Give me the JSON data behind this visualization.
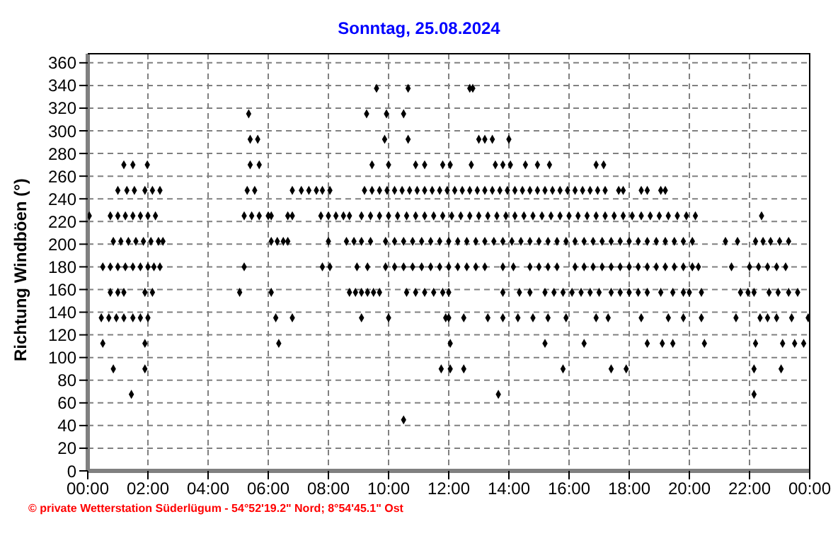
{
  "chart_data": {
    "type": "scatter",
    "title": "Sonntag, 25.08.2024",
    "ylabel": "Richtung Windböen  (°)",
    "annotations": [
      "© private Wetterstation Süderlügum - 54°52'19.2\" Nord; 8°54'45.1\" Ost"
    ],
    "xlim": [
      0,
      24
    ],
    "ylim": [
      0,
      368
    ],
    "xticks": [
      {
        "value": 0,
        "label": "00:00"
      },
      {
        "value": 2,
        "label": "02:00"
      },
      {
        "value": 4,
        "label": "04:00"
      },
      {
        "value": 6,
        "label": "06:00"
      },
      {
        "value": 8,
        "label": "08:00"
      },
      {
        "value": 10,
        "label": "10:00"
      },
      {
        "value": 12,
        "label": "12:00"
      },
      {
        "value": 14,
        "label": "14:00"
      },
      {
        "value": 16,
        "label": "16:00"
      },
      {
        "value": 18,
        "label": "18:00"
      },
      {
        "value": 20,
        "label": "20:00"
      },
      {
        "value": 22,
        "label": "22:00"
      },
      {
        "value": 24,
        "label": "00:00"
      }
    ],
    "yticks": [
      0,
      20,
      40,
      60,
      80,
      100,
      120,
      140,
      160,
      180,
      200,
      220,
      240,
      260,
      280,
      300,
      320,
      340,
      360
    ],
    "grid": true,
    "marker": "diamond",
    "series": [
      {
        "color": "#000000",
        "x": [
          9.6,
          10.65,
          12.7,
          12.8,
          5.35,
          9.27,
          9.93,
          10.5,
          5.4,
          5.65,
          9.87,
          10.65,
          13.0,
          13.2,
          13.45,
          14.0,
          1.2,
          1.5,
          1.98,
          5.4,
          5.7,
          9.45,
          10.0,
          10.9,
          11.2,
          11.8,
          12.05,
          12.75,
          13.55,
          13.8,
          14.05,
          14.55,
          14.95,
          15.35,
          16.9,
          17.15,
          1.0,
          1.3,
          1.55,
          1.9,
          2.15,
          2.4,
          5.3,
          5.55,
          6.8,
          7.1,
          7.35,
          7.6,
          7.8,
          8.05,
          9.2,
          9.45,
          9.7,
          9.95,
          10.2,
          10.45,
          10.7,
          10.95,
          11.2,
          11.45,
          11.7,
          11.95,
          12.2,
          12.45,
          12.7,
          12.95,
          13.2,
          13.45,
          13.7,
          13.95,
          14.2,
          14.45,
          14.7,
          14.95,
          15.2,
          15.45,
          15.7,
          15.95,
          16.2,
          16.45,
          16.7,
          16.95,
          17.2,
          17.65,
          17.8,
          18.4,
          18.6,
          19.05,
          19.2,
          0.05,
          0.75,
          1.0,
          1.25,
          1.5,
          1.75,
          2.0,
          2.25,
          5.2,
          5.45,
          5.7,
          6.0,
          6.1,
          6.65,
          6.8,
          7.75,
          8.0,
          8.25,
          8.5,
          8.7,
          9.1,
          9.4,
          9.7,
          10.0,
          10.3,
          10.6,
          10.9,
          11.2,
          11.5,
          11.8,
          12.1,
          12.4,
          12.7,
          13.0,
          13.3,
          13.6,
          13.9,
          14.2,
          14.5,
          14.8,
          15.1,
          15.4,
          15.7,
          16.0,
          16.3,
          16.6,
          16.9,
          17.2,
          17.5,
          17.8,
          18.1,
          18.4,
          18.7,
          19.0,
          19.3,
          19.6,
          19.9,
          20.2,
          22.4,
          0.85,
          1.1,
          1.35,
          1.6,
          1.85,
          2.1,
          2.35,
          2.5,
          6.1,
          6.3,
          6.5,
          6.65,
          8.0,
          8.6,
          8.85,
          9.1,
          9.4,
          9.9,
          10.2,
          10.5,
          10.8,
          11.1,
          11.4,
          11.7,
          12.0,
          12.3,
          12.6,
          12.9,
          13.2,
          13.5,
          13.8,
          14.1,
          14.4,
          14.7,
          15.0,
          15.3,
          15.6,
          15.9,
          16.2,
          16.5,
          16.8,
          17.1,
          17.4,
          17.7,
          18.0,
          18.3,
          18.6,
          18.9,
          19.2,
          19.5,
          19.8,
          20.1,
          21.2,
          21.6,
          22.2,
          22.45,
          22.7,
          23.0,
          23.3,
          0.5,
          0.75,
          1.0,
          1.25,
          1.5,
          1.75,
          2.0,
          2.2,
          2.4,
          5.2,
          7.8,
          8.05,
          8.95,
          9.3,
          9.9,
          10.2,
          10.5,
          10.8,
          11.1,
          11.4,
          11.7,
          12.0,
          12.3,
          12.6,
          12.9,
          13.2,
          13.8,
          14.15,
          14.7,
          15.0,
          15.3,
          15.6,
          16.2,
          16.5,
          16.8,
          17.1,
          17.4,
          17.7,
          18.0,
          18.3,
          18.6,
          18.9,
          19.2,
          19.5,
          19.8,
          20.1,
          20.3,
          21.4,
          22.0,
          22.3,
          22.6,
          22.9,
          23.2,
          0.75,
          1.0,
          1.2,
          1.9,
          2.15,
          5.05,
          6.1,
          8.7,
          8.9,
          9.1,
          9.3,
          9.5,
          9.7,
          10.6,
          10.9,
          11.2,
          11.5,
          11.8,
          12.0,
          13.8,
          14.35,
          14.7,
          15.2,
          15.5,
          15.8,
          16.1,
          16.4,
          16.7,
          17.0,
          17.4,
          17.7,
          18.0,
          18.3,
          18.6,
          19.05,
          19.45,
          19.8,
          20.0,
          20.4,
          21.7,
          21.95,
          22.15,
          22.65,
          22.95,
          23.3,
          23.6,
          0.45,
          0.7,
          0.95,
          1.2,
          1.5,
          1.75,
          2.0,
          6.25,
          6.8,
          9.1,
          10.0,
          11.9,
          12.0,
          12.5,
          13.3,
          13.8,
          14.3,
          14.8,
          15.3,
          15.9,
          16.9,
          17.3,
          18.4,
          19.3,
          19.8,
          20.4,
          21.55,
          22.35,
          22.6,
          22.9,
          23.4,
          23.95,
          0.5,
          1.9,
          6.35,
          12.05,
          15.2,
          16.5,
          18.6,
          19.1,
          19.45,
          20.5,
          22.2,
          23.1,
          23.5,
          23.8,
          0.85,
          1.9,
          11.75,
          12.05,
          12.5,
          15.8,
          17.4,
          17.9,
          22.15,
          23.05,
          1.45,
          13.65,
          22.15,
          10.5
        ],
        "values": [
          337.5,
          337.5,
          337.5,
          337.5,
          315,
          315,
          315,
          315,
          292.5,
          292.5,
          292.5,
          292.5,
          292.5,
          292.5,
          292.5,
          292.5,
          270,
          270,
          270,
          270,
          270,
          270,
          270,
          270,
          270,
          270,
          270,
          270,
          270,
          270,
          270,
          270,
          270,
          270,
          270,
          270,
          247.5,
          247.5,
          247.5,
          247.5,
          247.5,
          247.5,
          247.5,
          247.5,
          247.5,
          247.5,
          247.5,
          247.5,
          247.5,
          247.5,
          247.5,
          247.5,
          247.5,
          247.5,
          247.5,
          247.5,
          247.5,
          247.5,
          247.5,
          247.5,
          247.5,
          247.5,
          247.5,
          247.5,
          247.5,
          247.5,
          247.5,
          247.5,
          247.5,
          247.5,
          247.5,
          247.5,
          247.5,
          247.5,
          247.5,
          247.5,
          247.5,
          247.5,
          247.5,
          247.5,
          247.5,
          247.5,
          247.5,
          247.5,
          247.5,
          247.5,
          247.5,
          247.5,
          247.5,
          225,
          225,
          225,
          225,
          225,
          225,
          225,
          225,
          225,
          225,
          225,
          225,
          225,
          225,
          225,
          225,
          225,
          225,
          225,
          225,
          225,
          225,
          225,
          225,
          225,
          225,
          225,
          225,
          225,
          225,
          225,
          225,
          225,
          225,
          225,
          225,
          225,
          225,
          225,
          225,
          225,
          225,
          225,
          225,
          225,
          225,
          225,
          225,
          225,
          225,
          225,
          225,
          225,
          225,
          225,
          225,
          225,
          225,
          225,
          202.5,
          202.5,
          202.5,
          202.5,
          202.5,
          202.5,
          202.5,
          202.5,
          202.5,
          202.5,
          202.5,
          202.5,
          202.5,
          202.5,
          202.5,
          202.5,
          202.5,
          202.5,
          202.5,
          202.5,
          202.5,
          202.5,
          202.5,
          202.5,
          202.5,
          202.5,
          202.5,
          202.5,
          202.5,
          202.5,
          202.5,
          202.5,
          202.5,
          202.5,
          202.5,
          202.5,
          202.5,
          202.5,
          202.5,
          202.5,
          202.5,
          202.5,
          202.5,
          202.5,
          202.5,
          202.5,
          202.5,
          202.5,
          202.5,
          202.5,
          202.5,
          202.5,
          202.5,
          202.5,
          202.5,
          202.5,
          202.5,
          202.5,
          202.5,
          180,
          180,
          180,
          180,
          180,
          180,
          180,
          180,
          180,
          180,
          180,
          180,
          180,
          180,
          180,
          180,
          180,
          180,
          180,
          180,
          180,
          180,
          180,
          180,
          180,
          180,
          180,
          180,
          180,
          180,
          180,
          180,
          180,
          180,
          180,
          180,
          180,
          180,
          180,
          180,
          180,
          180,
          180,
          180,
          180,
          180,
          180,
          180,
          180,
          180,
          180,
          180,
          180,
          157.5,
          157.5,
          157.5,
          157.5,
          157.5,
          157.5,
          157.5,
          157.5,
          157.5,
          157.5,
          157.5,
          157.5,
          157.5,
          157.5,
          157.5,
          157.5,
          157.5,
          157.5,
          157.5,
          157.5,
          157.5,
          157.5,
          157.5,
          157.5,
          157.5,
          157.5,
          157.5,
          157.5,
          157.5,
          157.5,
          157.5,
          157.5,
          157.5,
          157.5,
          157.5,
          157.5,
          157.5,
          157.5,
          157.5,
          157.5,
          157.5,
          157.5,
          157.5,
          157.5,
          157.5,
          157.5,
          135,
          135,
          135,
          135,
          135,
          135,
          135,
          135,
          135,
          135,
          135,
          135,
          135,
          135,
          135,
          135,
          135,
          135,
          135,
          135,
          135,
          135,
          135,
          135,
          135,
          135,
          135,
          135,
          135,
          135,
          135,
          135,
          112.5,
          112.5,
          112.5,
          112.5,
          112.5,
          112.5,
          112.5,
          112.5,
          112.5,
          112.5,
          112.5,
          112.5,
          112.5,
          112.5,
          90,
          90,
          90,
          90,
          90,
          90,
          90,
          90,
          90,
          90,
          67.5,
          67.5,
          67.5,
          45
        ]
      }
    ]
  }
}
